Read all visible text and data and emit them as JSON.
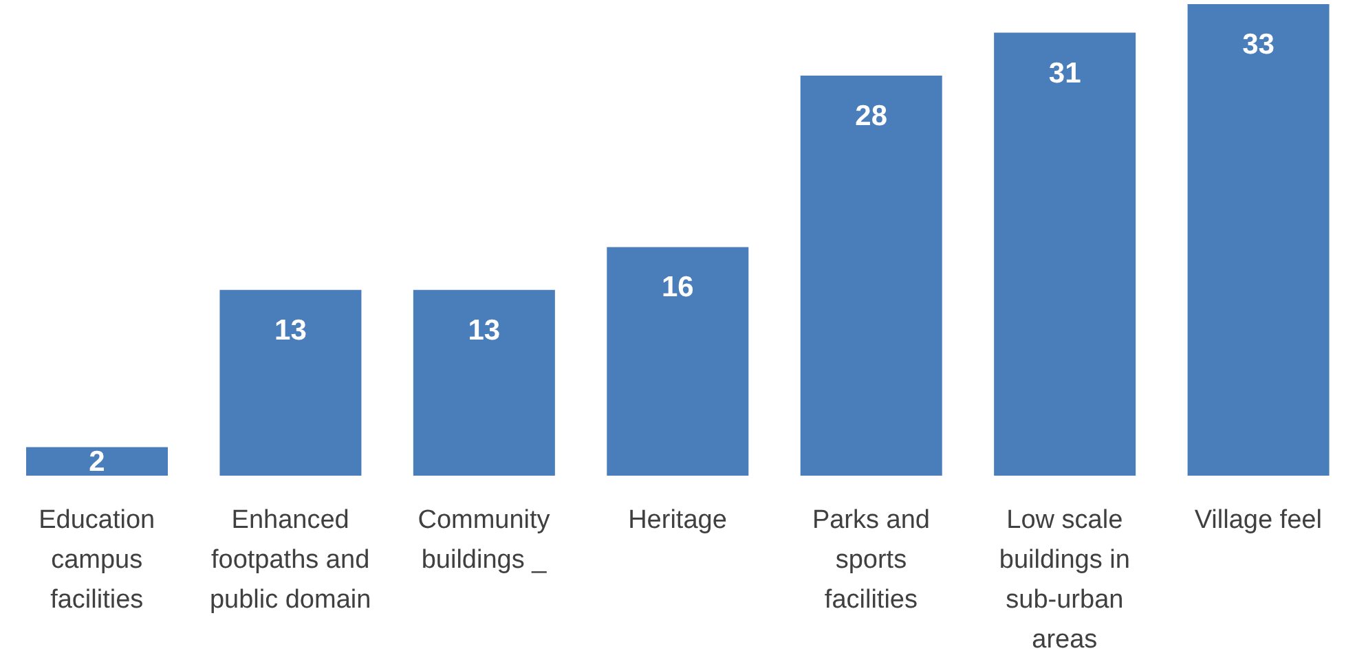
{
  "chart_data": {
    "type": "bar",
    "categories": [
      "Education campus facilities",
      "Enhanced footpaths and public domain",
      "Community buildings _",
      "Heritage",
      "Parks and sports facilities",
      "Low scale buildings in sub-urban areas",
      "Village feel"
    ],
    "values": [
      2,
      13,
      13,
      16,
      28,
      31,
      33
    ],
    "color": "#4a7ebb",
    "data_labels": true
  }
}
